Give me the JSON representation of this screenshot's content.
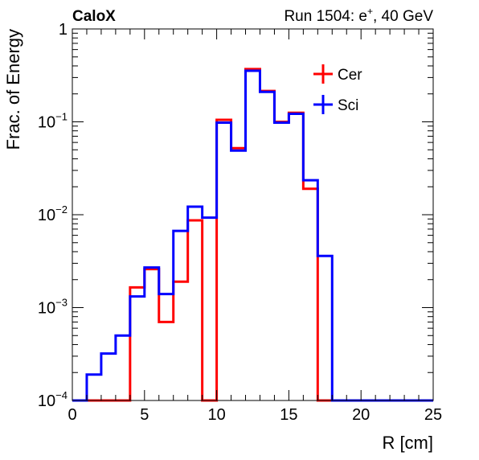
{
  "chart_data": {
    "type": "line",
    "title": "CaloX",
    "subtitle": "Run 1504: e",
    "subtitle_sup": "+",
    "subtitle_tail": ", 40 GeV",
    "xlabel": "R [cm]",
    "ylabel": "Frac. of Energy",
    "xlim": [
      0,
      25
    ],
    "ylim": [
      0.0001,
      1
    ],
    "yscale": "log",
    "grid": false,
    "legend_position": "top-right",
    "x_ticks": [
      {
        "value": 0,
        "label": "0"
      },
      {
        "value": 5,
        "label": "5"
      },
      {
        "value": 10,
        "label": "10"
      },
      {
        "value": 15,
        "label": "15"
      },
      {
        "value": 20,
        "label": "20"
      },
      {
        "value": 25,
        "label": "25"
      }
    ],
    "y_ticks": [
      {
        "value": 1,
        "base": "1",
        "exp": ""
      },
      {
        "value": 0.1,
        "base": "10",
        "exp": "−1"
      },
      {
        "value": 0.01,
        "base": "10",
        "exp": "−2"
      },
      {
        "value": 0.001,
        "base": "10",
        "exp": "−3"
      },
      {
        "value": 0.0001,
        "base": "10",
        "exp": "−4"
      }
    ],
    "bin_edges": [
      0,
      1,
      2,
      3,
      4,
      5,
      6,
      7,
      8,
      9,
      10,
      11,
      12,
      13,
      14,
      15,
      16,
      17,
      18,
      19,
      20,
      21,
      22,
      23,
      24,
      25
    ],
    "series": [
      {
        "name": "Cer",
        "color": "#ff0000",
        "values": [
          0.0001,
          0.0001,
          0.0001,
          0.0001,
          0.00165,
          0.0026,
          0.0007,
          0.0019,
          0.0087,
          0.0001,
          0.105,
          0.052,
          0.37,
          0.215,
          0.1,
          0.125,
          0.019,
          0.0001,
          0.0001,
          0.0001,
          0.0001,
          0.0001,
          0.0001,
          0.0001,
          0.0001
        ]
      },
      {
        "name": "Sci",
        "color": "#0000ff",
        "values": [
          0.0001,
          0.00019,
          0.00032,
          0.0005,
          0.00132,
          0.0027,
          0.0014,
          0.0067,
          0.0122,
          0.0093,
          0.098,
          0.049,
          0.355,
          0.21,
          0.098,
          0.122,
          0.0235,
          0.0036,
          0.0001,
          0.0001,
          0.0001,
          0.0001,
          0.0001,
          0.0001,
          0.0001
        ]
      }
    ]
  }
}
